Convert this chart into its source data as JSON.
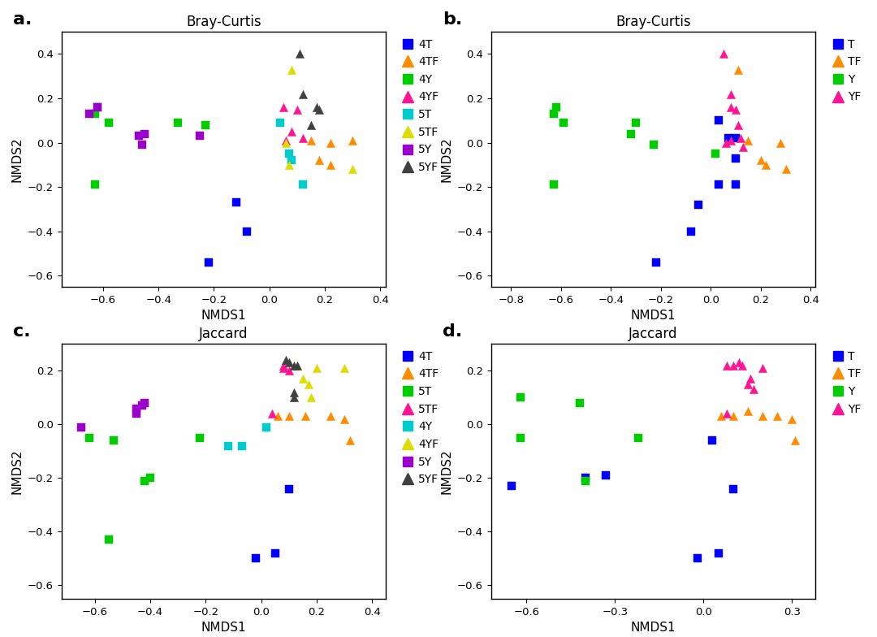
{
  "panel_a": {
    "title": "Bray-Curtis",
    "xlim": [
      -0.75,
      0.42
    ],
    "ylim": [
      -0.65,
      0.5
    ],
    "xticks": [
      -0.6,
      -0.4,
      -0.2,
      0.0,
      0.2,
      0.4
    ],
    "yticks": [
      -0.6,
      -0.4,
      -0.2,
      0.0,
      0.2,
      0.4
    ],
    "series": [
      {
        "name": "4T",
        "color": "#0000FF",
        "marker": "s",
        "points": [
          [
            -0.12,
            -0.27
          ],
          [
            -0.08,
            -0.4
          ],
          [
            -0.22,
            -0.54
          ]
        ]
      },
      {
        "name": "4TF",
        "color": "#FF8C00",
        "marker": "^",
        "points": [
          [
            0.15,
            0.01
          ],
          [
            0.22,
            0.0
          ],
          [
            0.3,
            0.01
          ],
          [
            0.22,
            -0.1
          ],
          [
            0.18,
            -0.08
          ]
        ]
      },
      {
        "name": "4Y",
        "color": "#00CC00",
        "marker": "s",
        "points": [
          [
            -0.63,
            0.13
          ],
          [
            -0.62,
            0.16
          ],
          [
            -0.58,
            0.09
          ],
          [
            -0.33,
            0.09
          ],
          [
            -0.23,
            0.08
          ],
          [
            -0.63,
            -0.19
          ]
        ]
      },
      {
        "name": "4YF",
        "color": "#FF1493",
        "marker": "^",
        "points": [
          [
            0.05,
            0.16
          ],
          [
            0.1,
            0.15
          ],
          [
            0.08,
            0.05
          ],
          [
            0.12,
            0.02
          ],
          [
            0.06,
            0.01
          ]
        ]
      },
      {
        "name": "5T",
        "color": "#00CCCC",
        "marker": "s",
        "points": [
          [
            0.04,
            0.09
          ],
          [
            0.07,
            -0.05
          ],
          [
            0.12,
            -0.19
          ],
          [
            0.08,
            -0.08
          ]
        ]
      },
      {
        "name": "5TF",
        "color": "#DDDD00",
        "marker": "^",
        "points": [
          [
            0.08,
            0.33
          ],
          [
            0.06,
            0.0
          ],
          [
            0.07,
            -0.1
          ],
          [
            0.3,
            -0.12
          ]
        ]
      },
      {
        "name": "5Y",
        "color": "#9900CC",
        "marker": "s",
        "points": [
          [
            -0.65,
            0.13
          ],
          [
            -0.62,
            0.16
          ],
          [
            -0.45,
            0.04
          ],
          [
            -0.47,
            0.03
          ],
          [
            -0.46,
            -0.01
          ],
          [
            -0.25,
            0.03
          ]
        ]
      },
      {
        "name": "5YF",
        "color": "#404040",
        "marker": "^",
        "points": [
          [
            0.11,
            0.4
          ],
          [
            0.12,
            0.22
          ],
          [
            0.17,
            0.16
          ],
          [
            0.18,
            0.15
          ],
          [
            0.15,
            0.08
          ]
        ]
      }
    ]
  },
  "panel_b": {
    "title": "Bray-Curtis",
    "xlim": [
      -0.88,
      0.42
    ],
    "ylim": [
      -0.65,
      0.5
    ],
    "xticks": [
      -0.8,
      -0.6,
      -0.4,
      -0.2,
      0.0,
      0.2,
      0.4
    ],
    "yticks": [
      -0.6,
      -0.4,
      -0.2,
      0.0,
      0.2,
      0.4
    ],
    "series": [
      {
        "name": "T",
        "color": "#0000FF",
        "marker": "s",
        "points": [
          [
            0.03,
            0.1
          ],
          [
            0.07,
            0.02
          ],
          [
            0.1,
            0.02
          ],
          [
            0.1,
            -0.07
          ],
          [
            0.1,
            -0.19
          ],
          [
            0.03,
            -0.19
          ],
          [
            -0.05,
            -0.28
          ],
          [
            -0.08,
            -0.4
          ],
          [
            -0.22,
            -0.54
          ]
        ]
      },
      {
        "name": "TF",
        "color": "#FF8C00",
        "marker": "^",
        "points": [
          [
            0.11,
            0.33
          ],
          [
            0.15,
            0.01
          ],
          [
            0.2,
            -0.08
          ],
          [
            0.22,
            -0.1
          ],
          [
            0.28,
            0.0
          ],
          [
            0.3,
            -0.12
          ]
        ]
      },
      {
        "name": "Y",
        "color": "#00CC00",
        "marker": "s",
        "points": [
          [
            -0.63,
            0.13
          ],
          [
            -0.62,
            0.16
          ],
          [
            -0.59,
            0.09
          ],
          [
            -0.32,
            0.04
          ],
          [
            -0.3,
            0.09
          ],
          [
            -0.23,
            -0.01
          ],
          [
            -0.63,
            -0.19
          ],
          [
            0.02,
            -0.05
          ]
        ]
      },
      {
        "name": "YF",
        "color": "#FF1493",
        "marker": "^",
        "points": [
          [
            0.05,
            0.4
          ],
          [
            0.08,
            0.22
          ],
          [
            0.08,
            0.16
          ],
          [
            0.1,
            0.15
          ],
          [
            0.11,
            0.08
          ],
          [
            0.12,
            0.02
          ],
          [
            0.08,
            0.01
          ],
          [
            0.06,
            0.0
          ],
          [
            0.13,
            -0.02
          ]
        ]
      }
    ]
  },
  "panel_c": {
    "title": "Jaccard",
    "xlim": [
      -0.72,
      0.45
    ],
    "ylim": [
      -0.65,
      0.3
    ],
    "xticks": [
      -0.6,
      -0.4,
      -0.2,
      0.0,
      0.2,
      0.4
    ],
    "yticks": [
      -0.6,
      -0.4,
      -0.2,
      0.0,
      0.2
    ],
    "series": [
      {
        "name": "4T",
        "color": "#0000FF",
        "marker": "s",
        "points": [
          [
            -0.02,
            -0.5
          ],
          [
            0.05,
            -0.48
          ],
          [
            0.1,
            -0.24
          ]
        ]
      },
      {
        "name": "4TF",
        "color": "#FF8C00",
        "marker": "^",
        "points": [
          [
            0.06,
            0.03
          ],
          [
            0.1,
            0.03
          ],
          [
            0.16,
            0.03
          ],
          [
            0.25,
            0.03
          ],
          [
            0.3,
            0.02
          ],
          [
            0.32,
            -0.06
          ]
        ]
      },
      {
        "name": "5T",
        "color": "#00CC00",
        "marker": "s",
        "points": [
          [
            -0.62,
            -0.05
          ],
          [
            -0.53,
            -0.06
          ],
          [
            -0.42,
            -0.21
          ],
          [
            -0.4,
            -0.2
          ],
          [
            -0.22,
            -0.05
          ],
          [
            -0.55,
            -0.43
          ]
        ]
      },
      {
        "name": "5TF",
        "color": "#FF1493",
        "marker": "^",
        "points": [
          [
            0.04,
            0.04
          ],
          [
            0.08,
            0.22
          ],
          [
            0.08,
            0.21
          ],
          [
            0.1,
            0.2
          ]
        ]
      },
      {
        "name": "4Y",
        "color": "#00CCCC",
        "marker": "s",
        "points": [
          [
            -0.12,
            -0.08
          ],
          [
            -0.07,
            -0.08
          ],
          [
            0.02,
            -0.01
          ]
        ]
      },
      {
        "name": "4YF",
        "color": "#DDDD00",
        "marker": "^",
        "points": [
          [
            0.13,
            0.22
          ],
          [
            0.15,
            0.17
          ],
          [
            0.17,
            0.15
          ],
          [
            0.18,
            0.1
          ],
          [
            0.2,
            0.21
          ],
          [
            0.3,
            0.21
          ]
        ]
      },
      {
        "name": "5Y",
        "color": "#9900CC",
        "marker": "s",
        "points": [
          [
            -0.65,
            -0.01
          ],
          [
            -0.42,
            0.08
          ],
          [
            -0.43,
            0.07
          ],
          [
            -0.45,
            0.04
          ],
          [
            -0.45,
            0.06
          ]
        ]
      },
      {
        "name": "5YF",
        "color": "#404040",
        "marker": "^",
        "points": [
          [
            0.09,
            0.24
          ],
          [
            0.1,
            0.23
          ],
          [
            0.12,
            0.22
          ],
          [
            0.13,
            0.22
          ],
          [
            0.12,
            0.12
          ],
          [
            0.12,
            0.1
          ]
        ]
      }
    ]
  },
  "panel_d": {
    "title": "Jaccard",
    "xlim": [
      -0.72,
      0.38
    ],
    "ylim": [
      -0.65,
      0.3
    ],
    "xticks": [
      -0.6,
      -0.3,
      0.0,
      0.3
    ],
    "yticks": [
      -0.6,
      -0.4,
      -0.2,
      0.0,
      0.2
    ],
    "series": [
      {
        "name": "T",
        "color": "#0000FF",
        "marker": "s",
        "points": [
          [
            -0.65,
            -0.23
          ],
          [
            -0.02,
            -0.5
          ],
          [
            0.05,
            -0.48
          ],
          [
            -0.33,
            -0.19
          ],
          [
            -0.4,
            -0.2
          ],
          [
            0.03,
            -0.06
          ],
          [
            0.1,
            -0.24
          ]
        ]
      },
      {
        "name": "TF",
        "color": "#FF8C00",
        "marker": "^",
        "points": [
          [
            0.06,
            0.03
          ],
          [
            0.1,
            0.03
          ],
          [
            0.15,
            0.05
          ],
          [
            0.2,
            0.03
          ],
          [
            0.25,
            0.03
          ],
          [
            0.3,
            0.02
          ],
          [
            0.31,
            -0.06
          ]
        ]
      },
      {
        "name": "Y",
        "color": "#00CC00",
        "marker": "s",
        "points": [
          [
            -0.62,
            -0.05
          ],
          [
            -0.62,
            0.1
          ],
          [
            -0.42,
            0.08
          ],
          [
            -0.22,
            -0.05
          ],
          [
            -0.4,
            -0.21
          ]
        ]
      },
      {
        "name": "YF",
        "color": "#FF1493",
        "marker": "^",
        "points": [
          [
            0.08,
            0.22
          ],
          [
            0.1,
            0.22
          ],
          [
            0.12,
            0.23
          ],
          [
            0.13,
            0.22
          ],
          [
            0.15,
            0.15
          ],
          [
            0.16,
            0.17
          ],
          [
            0.17,
            0.13
          ],
          [
            0.2,
            0.21
          ],
          [
            0.08,
            0.04
          ]
        ]
      }
    ]
  }
}
